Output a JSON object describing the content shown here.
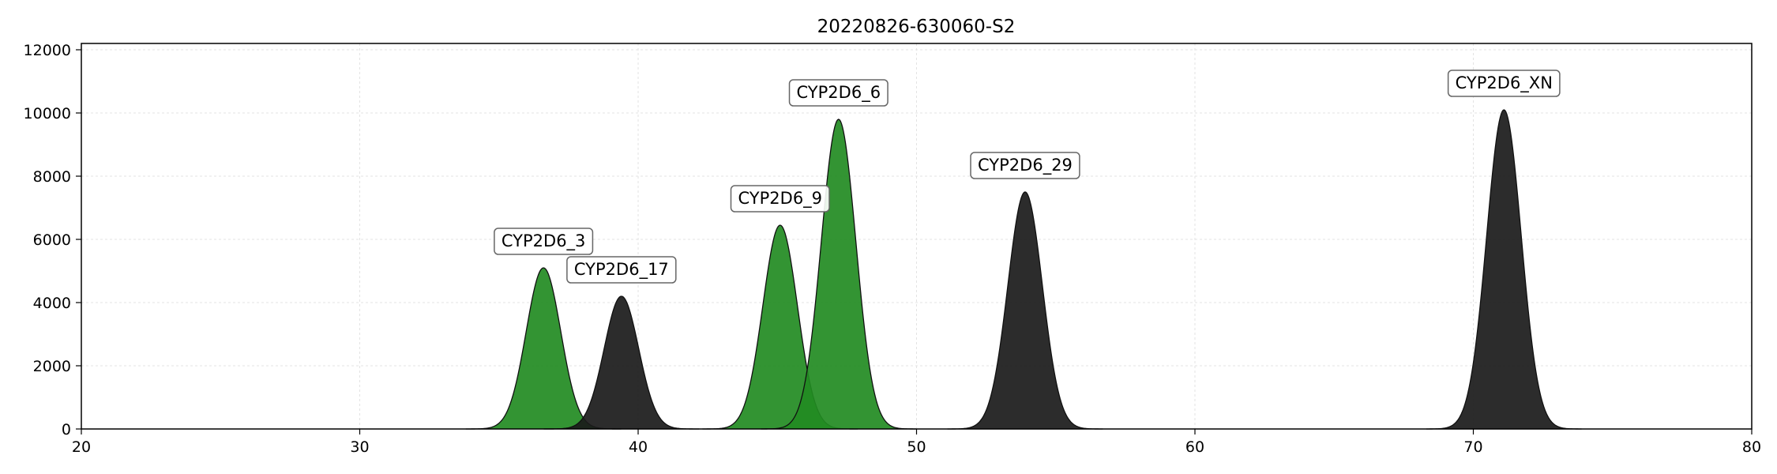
{
  "chart_data": {
    "type": "area",
    "title": "20220826-630060-S2",
    "xlabel": "",
    "ylabel": "",
    "xlim": [
      20,
      80
    ],
    "ylim": [
      0,
      12200
    ],
    "xticks": [
      20,
      30,
      40,
      50,
      60,
      70,
      80
    ],
    "yticks": [
      0,
      2000,
      4000,
      6000,
      8000,
      10000,
      12000
    ],
    "grid": true,
    "colors": {
      "green": "#228B22",
      "black": "#1a1a1a"
    },
    "series": [
      {
        "name": "CYP2D6_3",
        "center": 36.6,
        "height": 5100,
        "sigma": 0.62,
        "color": "green"
      },
      {
        "name": "CYP2D6_17",
        "center": 39.4,
        "height": 4200,
        "sigma": 0.62,
        "color": "black"
      },
      {
        "name": "CYP2D6_9",
        "center": 45.1,
        "height": 6450,
        "sigma": 0.62,
        "color": "green"
      },
      {
        "name": "CYP2D6_6",
        "center": 47.2,
        "height": 9800,
        "sigma": 0.62,
        "color": "green"
      },
      {
        "name": "CYP2D6_29",
        "center": 53.9,
        "height": 7500,
        "sigma": 0.62,
        "color": "black"
      },
      {
        "name": "CYP2D6_XN",
        "center": 71.1,
        "height": 10100,
        "sigma": 0.62,
        "color": "black"
      }
    ]
  }
}
